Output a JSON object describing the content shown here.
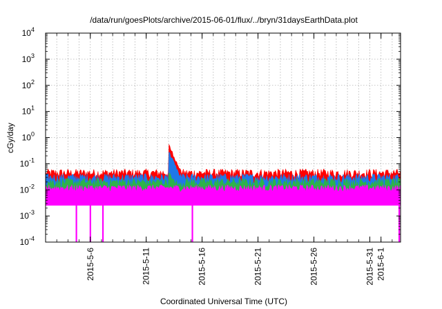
{
  "chart_data": {
    "type": "area",
    "title": "/data/run/goesPlots/archive/2015-06-01/flux/../bryn/31daysEarthData.plot",
    "xlabel": "Coordinated Universal Time (UTC)",
    "ylabel": "cGy/day",
    "y_scale": "log",
    "ylim": [
      0.0001,
      10000
    ],
    "y_ticks": [
      {
        "value": 0.0001,
        "base": "10",
        "exp": "-4"
      },
      {
        "value": 0.001,
        "base": "10",
        "exp": "-3"
      },
      {
        "value": 0.01,
        "base": "10",
        "exp": "-2"
      },
      {
        "value": 0.1,
        "base": "10",
        "exp": "-1"
      },
      {
        "value": 1,
        "base": "10",
        "exp": "0"
      },
      {
        "value": 10,
        "base": "10",
        "exp": "1"
      },
      {
        "value": 100,
        "base": "10",
        "exp": "2"
      },
      {
        "value": 1000,
        "base": "10",
        "exp": "3"
      },
      {
        "value": 10000,
        "base": "10",
        "exp": "4"
      }
    ],
    "xlim": [
      "2015-05-02",
      "2015-06-02T18:00"
    ],
    "x_ticks": [
      "2015-5-6",
      "2015-5-11",
      "2015-5-16",
      "2015-5-21",
      "2015-5-26",
      "2015-5-31",
      "2015-6-1"
    ],
    "grid": true,
    "series": [
      {
        "color": "#ff0000",
        "baseline": 0.045,
        "peak": {
          "x": "2015-05-13",
          "y": 0.55
        }
      },
      {
        "color": "#1f78e8",
        "baseline": 0.03,
        "peak": {
          "x": "2015-05-13",
          "y": 0.3
        }
      },
      {
        "color": "#2db34a",
        "baseline": 0.02,
        "peak": {
          "x": "2015-05-13",
          "y": 0.05
        }
      },
      {
        "color": "#ff00ff",
        "baseline_low": 0.0025,
        "baseline_high": 0.012,
        "dips": [
          "2015-05-04T18:00",
          "2015-05-06",
          "2015-05-07T03:00",
          "2015-05-15T03:00",
          "2015-06-02T15:00"
        ],
        "dip_min": 0.0001
      }
    ]
  }
}
